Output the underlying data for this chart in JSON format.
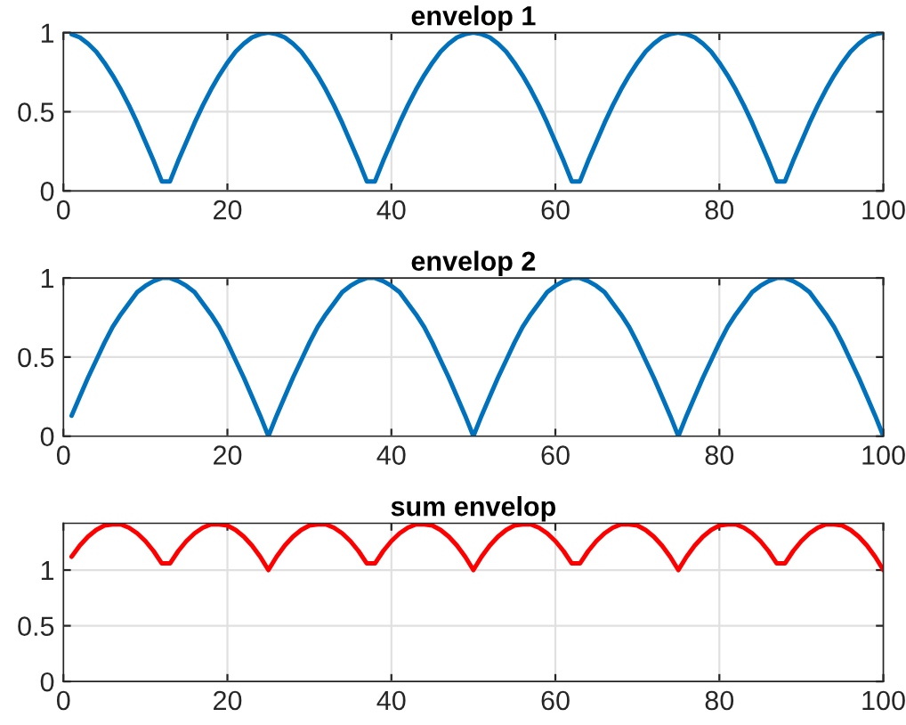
{
  "chart_data": [
    {
      "type": "line",
      "title": "envelop 1",
      "xlim": [
        0,
        100
      ],
      "ylim": [
        0,
        1
      ],
      "xticks": [
        0,
        20,
        40,
        60,
        80,
        100
      ],
      "yticks": [
        0,
        0.5,
        1
      ],
      "grid": true,
      "x": [
        1,
        2,
        3,
        4,
        5,
        6,
        7,
        8,
        9,
        10,
        11,
        12,
        13,
        14,
        15,
        16,
        17,
        18,
        19,
        20,
        21,
        22,
        23,
        24,
        25,
        26,
        27,
        28,
        29,
        30,
        31,
        32,
        33,
        34,
        35,
        36,
        37,
        38,
        39,
        40,
        41,
        42,
        43,
        44,
        45,
        46,
        47,
        48,
        49,
        50,
        51,
        52,
        53,
        54,
        55,
        56,
        57,
        58,
        59,
        60,
        61,
        62,
        63,
        64,
        65,
        66,
        67,
        68,
        69,
        70,
        71,
        72,
        73,
        74,
        75,
        76,
        77,
        78,
        79,
        80,
        81,
        82,
        83,
        84,
        85,
        86,
        87,
        88,
        89,
        90,
        91,
        92,
        93,
        94,
        95,
        96,
        97,
        98,
        99,
        100
      ],
      "series": [
        {
          "color": "#0072bd",
          "values": [
            0.99,
            0.97,
            0.93,
            0.88,
            0.81,
            0.73,
            0.64,
            0.54,
            0.43,
            0.31,
            0.19,
            0.06,
            0.06,
            0.19,
            0.31,
            0.43,
            0.54,
            0.64,
            0.73,
            0.81,
            0.88,
            0.93,
            0.97,
            0.99,
            1,
            0.99,
            0.97,
            0.93,
            0.88,
            0.81,
            0.73,
            0.64,
            0.54,
            0.43,
            0.31,
            0.19,
            0.06,
            0.06,
            0.19,
            0.31,
            0.43,
            0.54,
            0.64,
            0.73,
            0.81,
            0.88,
            0.93,
            0.97,
            0.99,
            1,
            0.99,
            0.97,
            0.93,
            0.88,
            0.81,
            0.73,
            0.64,
            0.54,
            0.43,
            0.31,
            0.19,
            0.06,
            0.06,
            0.19,
            0.31,
            0.43,
            0.54,
            0.64,
            0.73,
            0.81,
            0.88,
            0.93,
            0.97,
            0.99,
            1,
            0.99,
            0.97,
            0.93,
            0.88,
            0.81,
            0.73,
            0.64,
            0.54,
            0.43,
            0.31,
            0.19,
            0.06,
            0.06,
            0.19,
            0.31,
            0.43,
            0.54,
            0.64,
            0.73,
            0.81,
            0.88,
            0.93,
            0.97,
            0.99,
            1
          ]
        }
      ]
    },
    {
      "type": "line",
      "title": "envelop 2",
      "xlim": [
        0,
        100
      ],
      "ylim": [
        0,
        1
      ],
      "xticks": [
        0,
        20,
        40,
        60,
        80,
        100
      ],
      "yticks": [
        0,
        0.5,
        1
      ],
      "grid": true,
      "x": [
        1,
        2,
        3,
        4,
        5,
        6,
        7,
        8,
        9,
        10,
        11,
        12,
        13,
        14,
        15,
        16,
        17,
        18,
        19,
        20,
        21,
        22,
        23,
        24,
        25,
        26,
        27,
        28,
        29,
        30,
        31,
        32,
        33,
        34,
        35,
        36,
        37,
        38,
        39,
        40,
        41,
        42,
        43,
        44,
        45,
        46,
        47,
        48,
        49,
        50,
        51,
        52,
        53,
        54,
        55,
        56,
        57,
        58,
        59,
        60,
        61,
        62,
        63,
        64,
        65,
        66,
        67,
        68,
        69,
        70,
        71,
        72,
        73,
        74,
        75,
        76,
        77,
        78,
        79,
        80,
        81,
        82,
        83,
        84,
        85,
        86,
        87,
        88,
        89,
        90,
        91,
        92,
        93,
        94,
        95,
        96,
        97,
        98,
        99,
        100
      ],
      "series": [
        {
          "color": "#0072bd",
          "values": [
            0.13,
            0.25,
            0.37,
            0.48,
            0.59,
            0.69,
            0.77,
            0.84,
            0.91,
            0.95,
            0.98,
            1,
            1,
            0.98,
            0.95,
            0.91,
            0.84,
            0.77,
            0.69,
            0.59,
            0.48,
            0.37,
            0.25,
            0.13,
            0,
            0.13,
            0.25,
            0.37,
            0.48,
            0.59,
            0.69,
            0.77,
            0.84,
            0.91,
            0.95,
            0.98,
            1,
            1,
            0.98,
            0.95,
            0.91,
            0.84,
            0.77,
            0.69,
            0.59,
            0.48,
            0.37,
            0.25,
            0.13,
            0,
            0.13,
            0.25,
            0.37,
            0.48,
            0.59,
            0.69,
            0.77,
            0.84,
            0.91,
            0.95,
            0.98,
            1,
            1,
            0.98,
            0.95,
            0.91,
            0.84,
            0.77,
            0.69,
            0.59,
            0.48,
            0.37,
            0.25,
            0.13,
            0,
            0.13,
            0.25,
            0.37,
            0.48,
            0.59,
            0.69,
            0.77,
            0.84,
            0.91,
            0.95,
            0.98,
            1,
            1,
            0.98,
            0.95,
            0.91,
            0.84,
            0.77,
            0.69,
            0.59,
            0.48,
            0.37,
            0.25,
            0.13,
            0
          ]
        }
      ]
    },
    {
      "type": "line",
      "title": "sum envelop",
      "xlim": [
        0,
        100
      ],
      "ylim": [
        0,
        1.42
      ],
      "xticks": [
        0,
        20,
        40,
        60,
        80,
        100
      ],
      "yticks": [
        0,
        0.5,
        1
      ],
      "grid": true,
      "x": [
        1,
        2,
        3,
        4,
        5,
        6,
        7,
        8,
        9,
        10,
        11,
        12,
        13,
        14,
        15,
        16,
        17,
        18,
        19,
        20,
        21,
        22,
        23,
        24,
        25,
        26,
        27,
        28,
        29,
        30,
        31,
        32,
        33,
        34,
        35,
        36,
        37,
        38,
        39,
        40,
        41,
        42,
        43,
        44,
        45,
        46,
        47,
        48,
        49,
        50,
        51,
        52,
        53,
        54,
        55,
        56,
        57,
        58,
        59,
        60,
        61,
        62,
        63,
        64,
        65,
        66,
        67,
        68,
        69,
        70,
        71,
        72,
        73,
        74,
        75,
        76,
        77,
        78,
        79,
        80,
        81,
        82,
        83,
        84,
        85,
        86,
        87,
        88,
        89,
        90,
        91,
        92,
        93,
        94,
        95,
        96,
        97,
        98,
        99,
        100
      ],
      "series": [
        {
          "color": "#ff0000",
          "values": [
            1.12,
            1.22,
            1.3,
            1.36,
            1.4,
            1.41,
            1.41,
            1.38,
            1.33,
            1.26,
            1.17,
            1.06,
            1.06,
            1.17,
            1.26,
            1.33,
            1.38,
            1.41,
            1.41,
            1.4,
            1.36,
            1.3,
            1.22,
            1.12,
            1,
            1.12,
            1.22,
            1.3,
            1.36,
            1.4,
            1.41,
            1.41,
            1.38,
            1.33,
            1.26,
            1.17,
            1.06,
            1.06,
            1.17,
            1.26,
            1.33,
            1.38,
            1.41,
            1.41,
            1.4,
            1.36,
            1.3,
            1.22,
            1.12,
            1,
            1.12,
            1.22,
            1.3,
            1.36,
            1.4,
            1.41,
            1.41,
            1.38,
            1.33,
            1.26,
            1.17,
            1.06,
            1.06,
            1.17,
            1.26,
            1.33,
            1.38,
            1.41,
            1.41,
            1.4,
            1.36,
            1.3,
            1.22,
            1.12,
            1,
            1.12,
            1.22,
            1.3,
            1.36,
            1.4,
            1.41,
            1.41,
            1.38,
            1.33,
            1.26,
            1.17,
            1.06,
            1.06,
            1.17,
            1.26,
            1.33,
            1.38,
            1.41,
            1.41,
            1.4,
            1.36,
            1.3,
            1.22,
            1.12,
            1
          ]
        }
      ]
    }
  ]
}
